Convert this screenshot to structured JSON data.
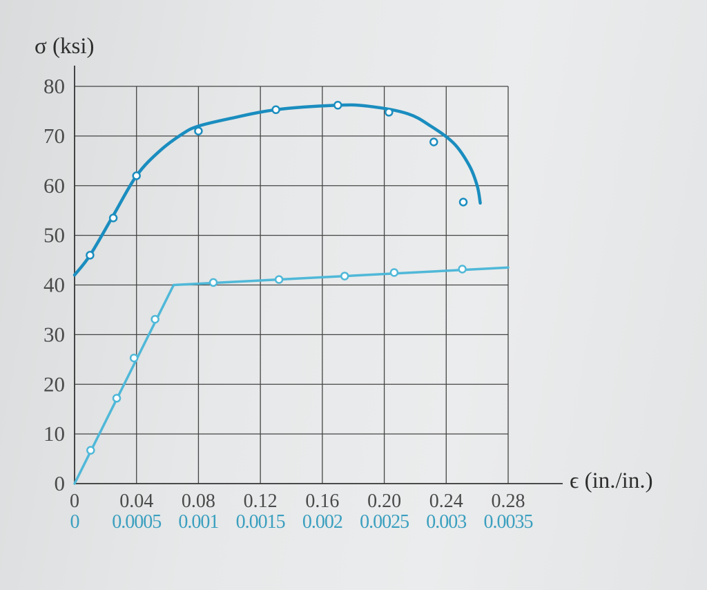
{
  "colors": {
    "upper_curve": "#1a8dbf",
    "lower_curve": "#4fb8d8",
    "grid": "#444444",
    "axis": "#333333",
    "tick_text": "#4a4a4a",
    "lower_tick_text": "#3a9fbf",
    "marker_fill": "#ffffff"
  },
  "chart_data": {
    "type": "line",
    "ylabel": "σ (ksi)",
    "xlabel": "ϵ (in./in.)",
    "ylim": [
      0,
      80
    ],
    "yticks": [
      "0",
      "10",
      "20",
      "30",
      "40",
      "50",
      "60",
      "70",
      "80"
    ],
    "xlim": [
      0,
      0.28
    ],
    "xticks_upper": [
      "0",
      "0.04",
      "0.08",
      "0.12",
      "0.16",
      "0.20",
      "0.24",
      "0.28"
    ],
    "xticks_lower": [
      "0",
      "0.0005",
      "0.001",
      "0.0015",
      "0.002",
      "0.0025",
      "0.003",
      "0.0035"
    ],
    "grid": true,
    "series": [
      {
        "x_axis": "upper",
        "curve": [
          [
            0,
            42
          ],
          [
            0.01,
            46
          ],
          [
            0.025,
            54
          ],
          [
            0.04,
            62
          ],
          [
            0.055,
            67
          ],
          [
            0.07,
            70.5
          ],
          [
            0.08,
            72
          ],
          [
            0.1,
            73.5
          ],
          [
            0.13,
            75.3
          ],
          [
            0.17,
            76.2
          ],
          [
            0.19,
            76
          ],
          [
            0.215,
            74.5
          ],
          [
            0.23,
            72
          ],
          [
            0.245,
            68.5
          ],
          [
            0.255,
            64
          ],
          [
            0.26,
            60
          ],
          [
            0.262,
            56.5
          ]
        ],
        "markers": [
          [
            0.01,
            46
          ],
          [
            0.025,
            53.5
          ],
          [
            0.04,
            62
          ],
          [
            0.08,
            71
          ],
          [
            0.13,
            75.3
          ],
          [
            0.17,
            76.2
          ],
          [
            0.203,
            74.8
          ],
          [
            0.232,
            68.8
          ],
          [
            0.251,
            56.7
          ]
        ]
      },
      {
        "x_axis": "lower",
        "curve": [
          [
            0,
            0
          ],
          [
            0.0008,
            40
          ],
          [
            0.0035,
            43.5
          ]
        ],
        "markers": [
          [
            0.00013,
            6.7
          ],
          [
            0.00034,
            17.2
          ],
          [
            0.00048,
            25.3
          ],
          [
            0.00065,
            33.1
          ],
          [
            0.00112,
            40.5
          ],
          [
            0.00165,
            41.1
          ],
          [
            0.00218,
            41.8
          ],
          [
            0.00258,
            42.5
          ],
          [
            0.00313,
            43.2
          ]
        ]
      }
    ]
  }
}
